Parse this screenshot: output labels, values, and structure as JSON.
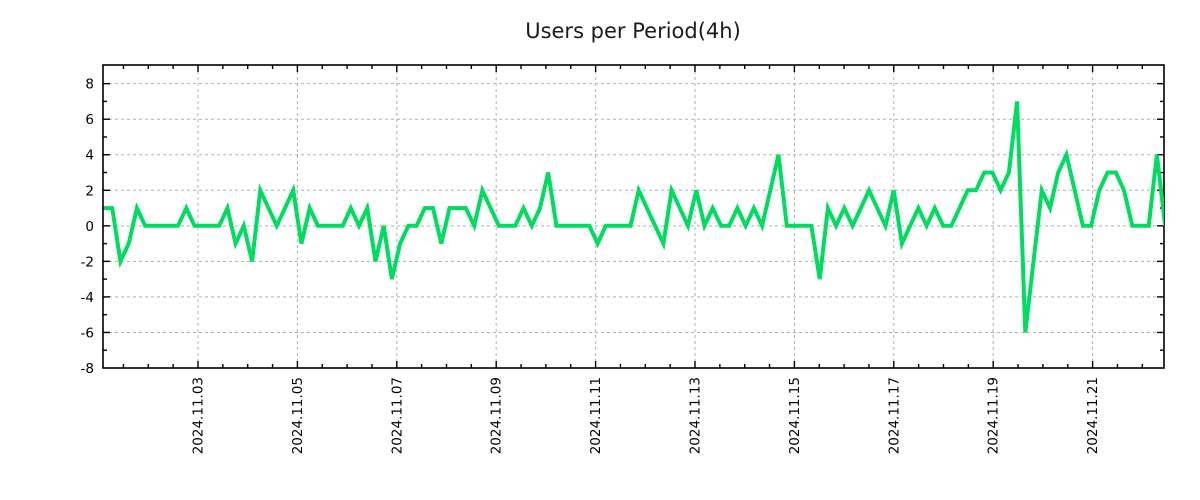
{
  "chart_data": {
    "type": "line",
    "title": "Users per Period(4h)",
    "series_name": "users",
    "period_hours": 4,
    "x_start_approx": "2024.11.01 02:00",
    "x_tick_labels": [
      "2024.11.03",
      "2024.11.05",
      "2024.11.07",
      "2024.11.09",
      "2024.11.11",
      "2024.11.13",
      "2024.11.15",
      "2024.11.17",
      "2024.11.19",
      "2024.11.21"
    ],
    "y_tick_labels": [
      "-8",
      "-6",
      "-4",
      "-2",
      "0",
      "2",
      "4",
      "6",
      "8"
    ],
    "y_ticks": [
      -8,
      -6,
      -4,
      -2,
      0,
      2,
      4,
      6,
      8
    ],
    "ylim": [
      -8,
      9.05
    ],
    "grid": true,
    "legend": "none",
    "line_color": "#00dc60",
    "grid_color": "#b0b0b0",
    "border_color": "#000000",
    "background_color": "#ffffff",
    "values": [
      1,
      1,
      -2,
      -1,
      1,
      0,
      0,
      0,
      0,
      0,
      1,
      0,
      0,
      0,
      0,
      1,
      -1,
      0,
      -2,
      2,
      1,
      0,
      1,
      2,
      -1,
      1,
      0,
      0,
      0,
      0,
      1,
      0,
      1,
      -2,
      0,
      -3,
      -1,
      0,
      0,
      1,
      1,
      -1,
      1,
      1,
      1,
      0,
      2,
      1,
      0,
      0,
      0,
      1,
      0,
      1,
      3,
      0,
      0,
      0,
      0,
      0,
      -1,
      0,
      0,
      0,
      0,
      2,
      1,
      0,
      -1,
      2,
      1,
      0,
      2,
      0,
      1,
      0,
      0,
      1,
      0,
      1,
      0,
      2,
      4,
      0,
      0,
      0,
      0,
      -3,
      1,
      0,
      1,
      0,
      1,
      2,
      1,
      0,
      2,
      -1,
      0,
      1,
      0,
      1,
      0,
      0,
      1,
      2,
      2,
      3,
      3,
      2,
      3,
      7,
      -6,
      -2,
      2,
      1,
      3,
      4,
      2,
      0,
      0,
      2,
      3,
      3,
      2,
      0,
      0,
      0,
      4,
      0
    ]
  }
}
